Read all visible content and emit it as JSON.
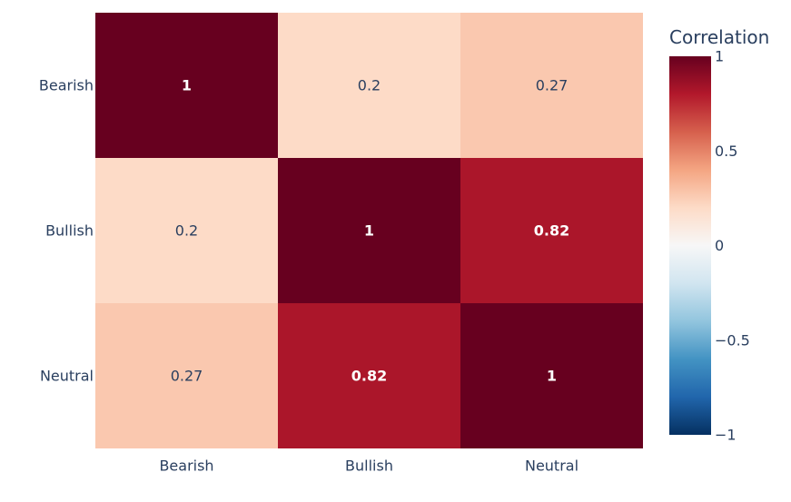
{
  "chart_data": {
    "type": "heatmap",
    "x_categories": [
      "Bearish",
      "Bullish",
      "Neutral"
    ],
    "y_categories": [
      "Bearish",
      "Bullish",
      "Neutral"
    ],
    "z": [
      [
        1,
        0.2,
        0.27
      ],
      [
        0.2,
        1,
        0.82
      ],
      [
        0.27,
        0.82,
        1
      ]
    ],
    "text": [
      [
        "1",
        "0.2",
        "0.27"
      ],
      [
        "0.2",
        "1",
        "0.82"
      ],
      [
        "0.27",
        "0.82",
        "1"
      ]
    ],
    "zmin": -1,
    "zmax": 1,
    "colorscale": "RdBu (reversed)",
    "colorbar": {
      "title": "Correlation",
      "ticks": [
        1,
        0.5,
        0,
        -0.5,
        -1
      ],
      "tick_labels": [
        "1",
        "0.5",
        "0",
        "−0.5",
        "−1"
      ]
    }
  }
}
